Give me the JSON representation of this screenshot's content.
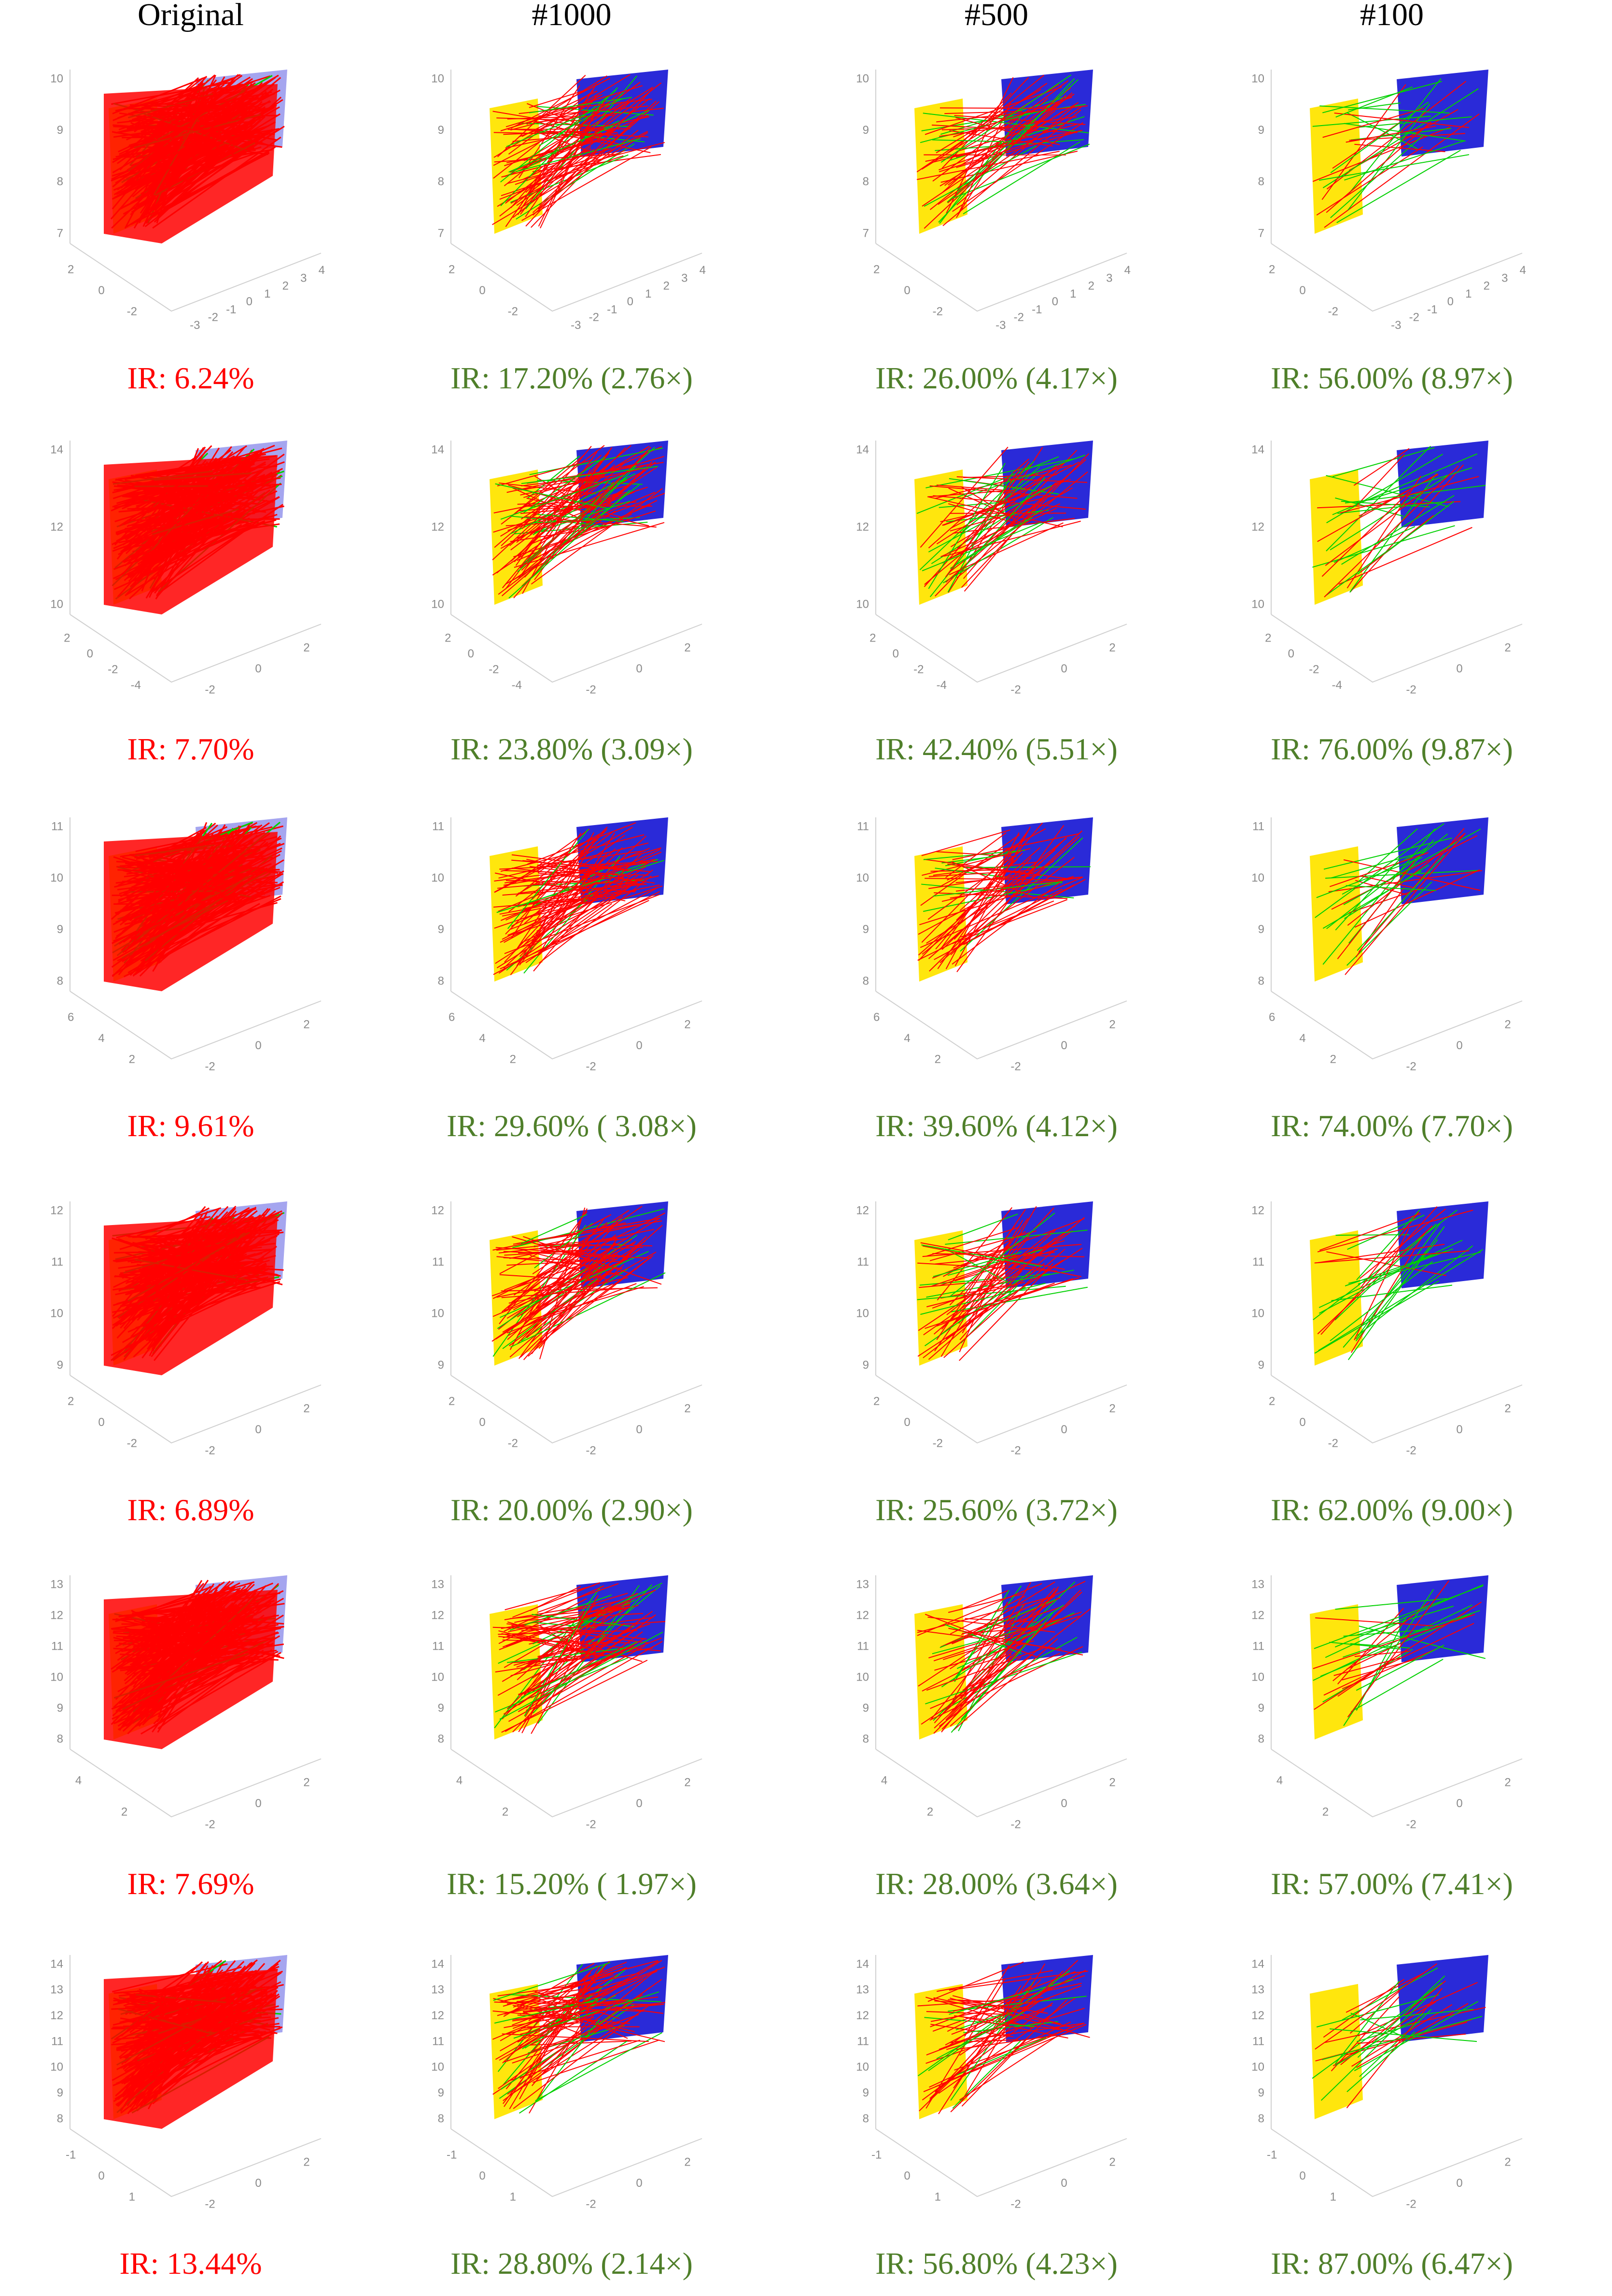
{
  "columns": [
    "Original",
    "#1000",
    "#500",
    "#100"
  ],
  "rows": [
    {
      "labels": [
        "IR: 6.24%",
        "IR: 17.20% (2.76×)",
        "IR: 26.00% (4.17×)",
        "IR: 56.00% (8.97×)"
      ],
      "zticks": [
        10,
        9,
        8,
        7
      ],
      "floor_a": [
        2,
        0,
        -2
      ],
      "floor_b": [
        -3,
        -2,
        -1,
        0,
        1,
        2,
        3,
        4
      ]
    },
    {
      "labels": [
        "IR: 7.70%",
        "IR: 23.80% (3.09×)",
        "IR: 42.40% (5.51×)",
        "IR: 76.00% (9.87×)"
      ],
      "zticks": [
        14,
        12,
        10
      ],
      "floor_a": [
        2,
        0,
        -2,
        -4
      ],
      "floor_b": [
        -2,
        0,
        2
      ]
    },
    {
      "labels": [
        "IR: 9.61%",
        "IR: 29.60% ( 3.08×)",
        "IR: 39.60% (4.12×)",
        "IR: 74.00% (7.70×)"
      ],
      "zticks": [
        11,
        10,
        9,
        8
      ],
      "floor_a": [
        6,
        4,
        2
      ],
      "floor_b": [
        -2,
        0,
        2
      ]
    },
    {
      "labels": [
        "IR: 6.89%",
        "IR: 20.00% (2.90×)",
        "IR: 25.60% (3.72×)",
        "IR: 62.00% (9.00×)"
      ],
      "zticks": [
        12,
        11,
        10,
        9
      ],
      "floor_a": [
        2,
        0,
        -2
      ],
      "floor_b": [
        -2,
        0,
        2
      ]
    },
    {
      "labels": [
        "IR: 7.69%",
        "IR: 15.20% ( 1.97×)",
        "IR: 28.00% (3.64×)",
        "IR: 57.00% (7.41×)"
      ],
      "zticks": [
        13,
        12,
        11,
        10,
        9,
        8
      ],
      "floor_a": [
        4,
        2
      ],
      "floor_b": [
        -2,
        0,
        2
      ]
    },
    {
      "labels": [
        "IR: 13.44%",
        "IR: 28.80% (2.14×)",
        "IR: 56.80% (4.23×)",
        "IR: 87.00% (6.47×)"
      ],
      "zticks": [
        14,
        13,
        12,
        11,
        10,
        9,
        8
      ],
      "floor_a": [
        -1,
        0,
        1
      ],
      "floor_b": [
        -2,
        0,
        2
      ]
    }
  ]
}
